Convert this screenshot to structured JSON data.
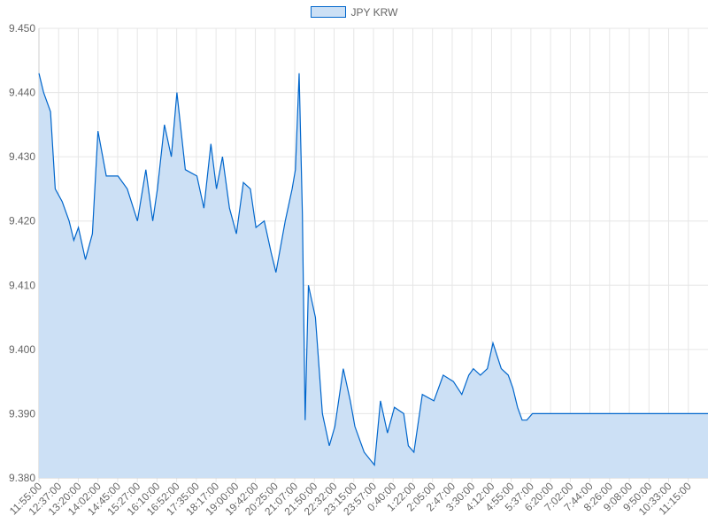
{
  "chart_data": {
    "type": "area",
    "legend": [
      "JPY KRW"
    ],
    "legend_position": "top",
    "grid": true,
    "colors": {
      "line": "#0066cc",
      "fill": "#cce0f5",
      "grid": "#e6e6e6",
      "text": "#666666"
    },
    "ylim": [
      9.38,
      9.45
    ],
    "y_ticks": [
      "9.450",
      "9.440",
      "9.430",
      "9.420",
      "9.410",
      "9.400",
      "9.390",
      "9.380"
    ],
    "x_ticks": [
      "11:55:00",
      "12:37:00",
      "13:20:00",
      "14:02:00",
      "14:45:00",
      "15:27:00",
      "16:10:00",
      "16:52:00",
      "17:35:00",
      "18:17:00",
      "19:00:00",
      "19:42:00",
      "20:25:00",
      "21:07:00",
      "21:50:00",
      "22:32:00",
      "23:15:00",
      "23:57:00",
      "0:40:00",
      "1:22:00",
      "2:05:00",
      "2:47:00",
      "3:30:00",
      "4:12:00",
      "4:55:00",
      "5:37:00",
      "6:20:00",
      "7:02:00",
      "7:44:00",
      "8:26:00",
      "9:08:00",
      "9:50:00",
      "10:33:00",
      "11:15:00"
    ],
    "series": [
      {
        "name": "JPY KRW",
        "x": [
          "11:55",
          "12:05",
          "12:20",
          "12:30",
          "12:45",
          "13:00",
          "13:10",
          "13:20",
          "13:35",
          "13:50",
          "14:02",
          "14:20",
          "14:45",
          "15:05",
          "15:27",
          "15:45",
          "16:00",
          "16:10",
          "16:25",
          "16:40",
          "16:52",
          "17:10",
          "17:35",
          "17:50",
          "18:05",
          "18:17",
          "18:30",
          "18:45",
          "19:00",
          "19:15",
          "19:30",
          "19:42",
          "20:00",
          "20:15",
          "20:25",
          "20:45",
          "21:00",
          "21:07",
          "21:15",
          "21:22",
          "21:28",
          "21:35",
          "21:50",
          "22:05",
          "22:20",
          "22:32",
          "22:50",
          "23:05",
          "23:15",
          "23:35",
          "23:57",
          "0:10",
          "0:25",
          "0:40",
          "1:00",
          "1:10",
          "1:22",
          "1:40",
          "2:05",
          "2:25",
          "2:47",
          "3:05",
          "3:20",
          "3:30",
          "3:45",
          "4:00",
          "4:12",
          "4:30",
          "4:45",
          "4:55",
          "5:05",
          "5:15",
          "5:25",
          "5:37",
          "6:20",
          "7:02",
          "7:44",
          "8:26",
          "9:08",
          "9:50",
          "10:33",
          "11:15",
          "11:55"
        ],
        "y": [
          9.443,
          9.44,
          9.437,
          9.425,
          9.423,
          9.42,
          9.417,
          9.419,
          9.414,
          9.418,
          9.434,
          9.427,
          9.427,
          9.425,
          9.42,
          9.428,
          9.42,
          9.425,
          9.435,
          9.43,
          9.44,
          9.428,
          9.427,
          9.422,
          9.432,
          9.425,
          9.43,
          9.422,
          9.418,
          9.426,
          9.425,
          9.419,
          9.42,
          9.415,
          9.412,
          9.42,
          9.425,
          9.428,
          9.443,
          9.421,
          9.389,
          9.41,
          9.405,
          9.39,
          9.385,
          9.388,
          9.397,
          9.392,
          9.388,
          9.384,
          9.382,
          9.392,
          9.387,
          9.391,
          9.39,
          9.385,
          9.384,
          9.393,
          9.392,
          9.396,
          9.395,
          9.393,
          9.396,
          9.397,
          9.396,
          9.397,
          9.401,
          9.397,
          9.396,
          9.394,
          9.391,
          9.389,
          9.389,
          9.39,
          9.39,
          9.39,
          9.39,
          9.39,
          9.39,
          9.39,
          9.39,
          9.39,
          9.39
        ]
      }
    ]
  }
}
